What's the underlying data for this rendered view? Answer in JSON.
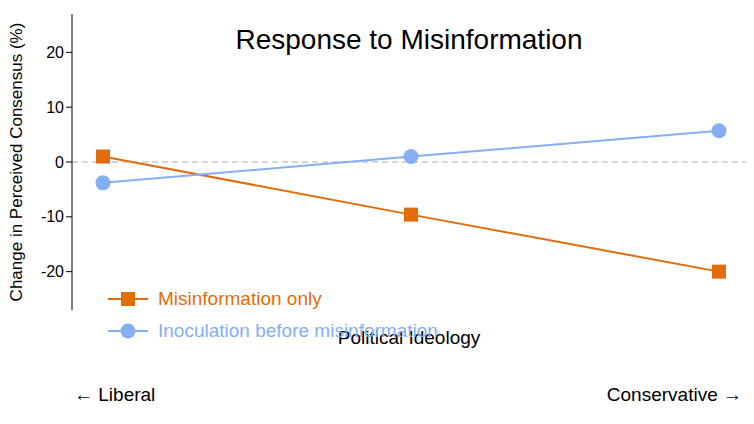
{
  "chart_data": {
    "type": "line",
    "title": "Response to Misinformation",
    "x_label": "Political Ideology",
    "y_label": "Change in Perceived Consensus (%)",
    "annotations": [
      "← Liberal",
      "Conservative →"
    ],
    "categories": [
      null,
      null,
      null
    ],
    "series": [
      {
        "name": "Misinformation only",
        "color": "#e36c0a",
        "marker": "square",
        "values": [
          1,
          -9.6,
          -20
        ]
      },
      {
        "name": "Inoculation before misinformation",
        "color": "#84aef5",
        "marker": "circle",
        "values": [
          -3.8,
          1,
          5.7
        ]
      }
    ],
    "ylim": [
      -27,
      27
    ],
    "yticks": [
      -20,
      -10,
      0,
      10,
      20
    ],
    "reference_lines": [
      0
    ],
    "tick_labels": "y",
    "grid": false,
    "legend": "lower left"
  }
}
